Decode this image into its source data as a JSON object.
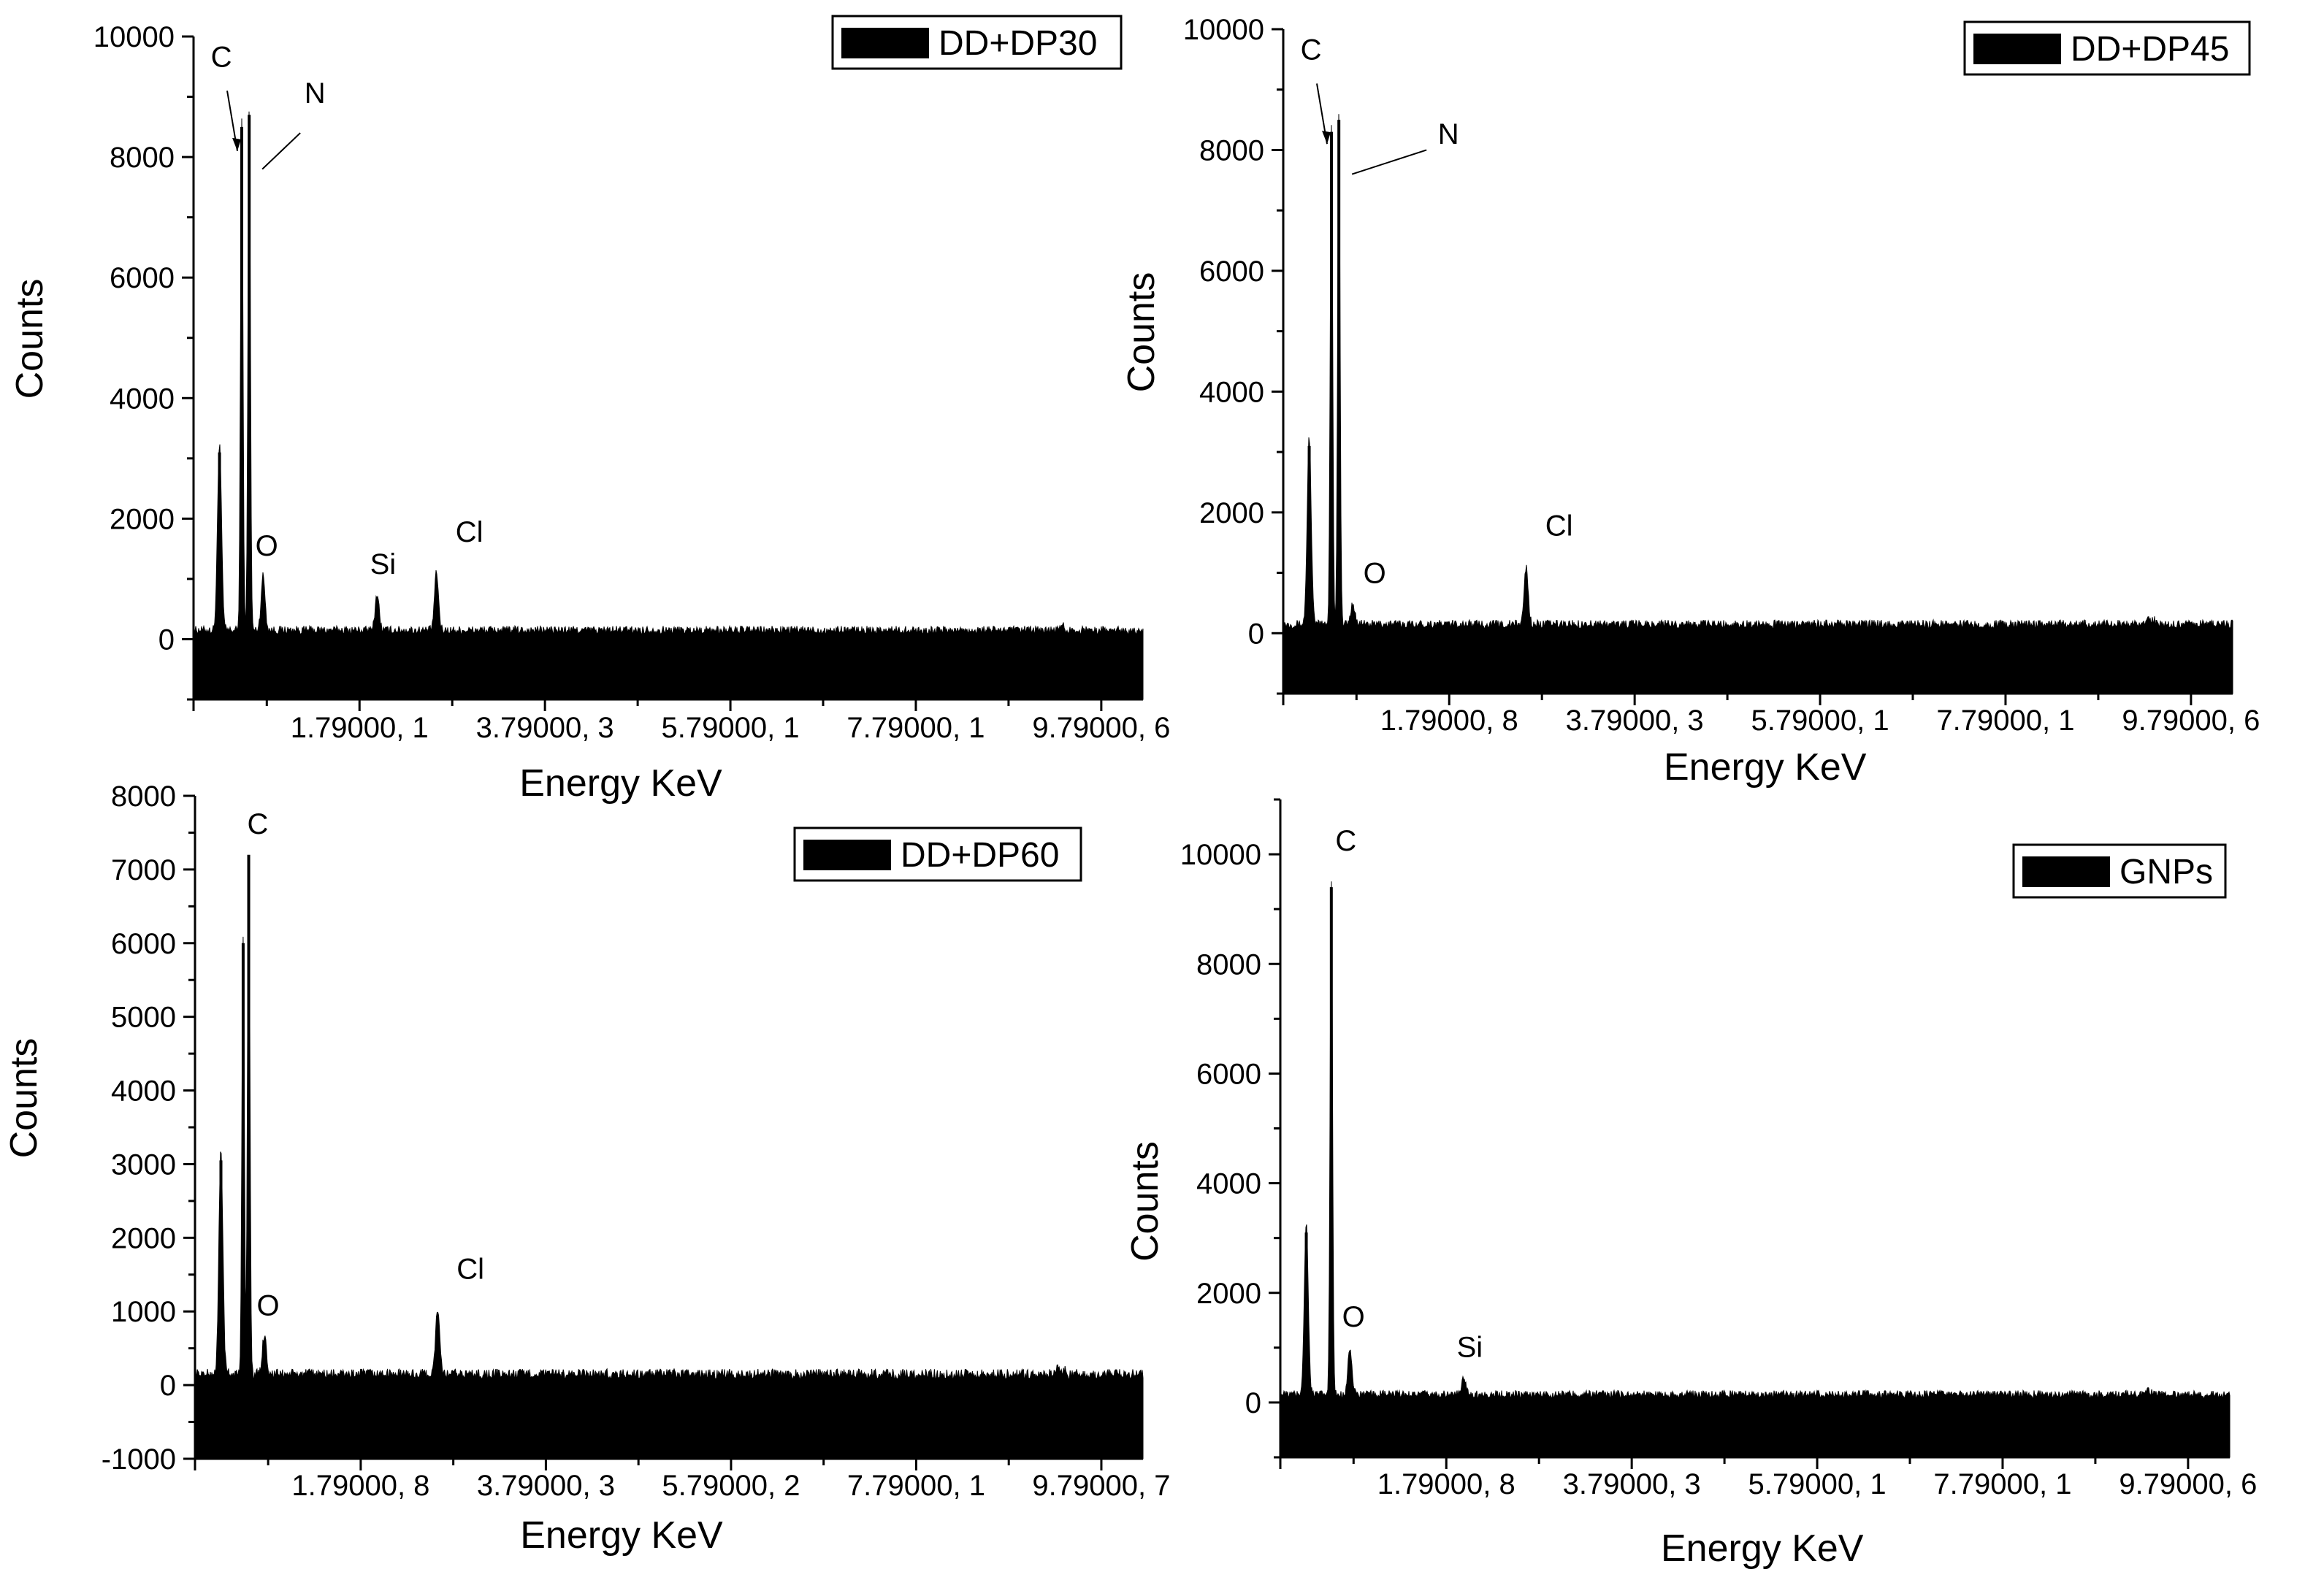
{
  "chart_data": [
    {
      "type": "area",
      "legend": "DD+DP30",
      "xlabel": "Energy KeV",
      "ylabel": "Counts",
      "ylim": [
        -1000,
        10000
      ],
      "y_ticks": [
        0,
        2000,
        4000,
        6000,
        8000,
        10000
      ],
      "x_tick_labels": [
        "1.79000, 1",
        "3.79000, 3",
        "5.79000, 1",
        "7.79000, 1",
        "9.79000, 6"
      ],
      "series_color": "#000000",
      "peaks": [
        {
          "label": "",
          "x": 0.28,
          "counts": 3100
        },
        {
          "label": "C",
          "x": 0.52,
          "counts": 8500
        },
        {
          "label": "N",
          "x": 0.6,
          "counts": 8700
        },
        {
          "label": "O",
          "x": 0.75,
          "counts": 900
        },
        {
          "label": "Si",
          "x": 1.98,
          "counts": 600
        },
        {
          "label": "Cl",
          "x": 2.62,
          "counts": 950
        }
      ]
    },
    {
      "type": "area",
      "legend": "DD+DP45",
      "xlabel": "Energy KeV",
      "ylabel": "Counts",
      "ylim": [
        -1000,
        10000
      ],
      "y_ticks": [
        0,
        2000,
        4000,
        6000,
        8000,
        10000
      ],
      "x_tick_labels": [
        "1.79000, 8",
        "3.79000, 3",
        "5.79000, 1",
        "7.79000, 1",
        "9.79000, 6"
      ],
      "series_color": "#000000",
      "peaks": [
        {
          "label": "",
          "x": 0.28,
          "counts": 3100
        },
        {
          "label": "C",
          "x": 0.52,
          "counts": 8300
        },
        {
          "label": "N",
          "x": 0.6,
          "counts": 8500
        },
        {
          "label": "O",
          "x": 0.75,
          "counts": 350
        },
        {
          "label": "Cl",
          "x": 2.62,
          "counts": 950
        }
      ]
    },
    {
      "type": "area",
      "legend": "DD+DP60",
      "xlabel": "Energy KeV",
      "ylabel": "Counts",
      "ylim": [
        -1000,
        8000
      ],
      "y_ticks": [
        -1000,
        0,
        1000,
        2000,
        3000,
        4000,
        5000,
        6000,
        7000,
        8000
      ],
      "x_tick_labels": [
        "1.79000, 8",
        "3.79000, 3",
        "5.79000, 2",
        "7.79000, 1",
        "9.79000, 7"
      ],
      "series_color": "#000000",
      "peaks": [
        {
          "label": "",
          "x": 0.28,
          "counts": 3050
        },
        {
          "label": "C",
          "x": 0.52,
          "counts": 6000
        },
        {
          "label": "",
          "x": 0.58,
          "counts": 7200
        },
        {
          "label": "O",
          "x": 0.75,
          "counts": 550
        },
        {
          "label": "Cl",
          "x": 2.62,
          "counts": 900
        }
      ]
    },
    {
      "type": "area",
      "legend": "GNPs",
      "xlabel": "Energy KeV",
      "ylabel": "Counts",
      "ylim": [
        -1000,
        11000
      ],
      "y_ticks": [
        0,
        2000,
        4000,
        6000,
        8000,
        10000
      ],
      "x_tick_labels": [
        "1.79000, 8",
        "3.79000, 3",
        "5.79000, 1",
        "7.79000, 1",
        "9.79000, 6"
      ],
      "series_color": "#000000",
      "peaks": [
        {
          "label": "",
          "x": 0.28,
          "counts": 3100
        },
        {
          "label": "C",
          "x": 0.55,
          "counts": 9400
        },
        {
          "label": "O",
          "x": 0.75,
          "counts": 850
        },
        {
          "label": "Si",
          "x": 1.98,
          "counts": 300
        }
      ]
    }
  ]
}
